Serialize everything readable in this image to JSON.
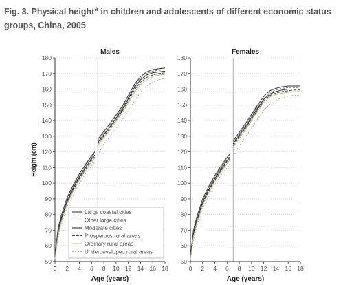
{
  "figure": {
    "title_part1": "Fig. 3. Physical height",
    "title_sup": "a",
    "title_part2": " in children and adolescents of different economic status groups, China, 2005"
  },
  "colors": {
    "text": "#555555",
    "axis": "#333333",
    "gridline": "#cccccc",
    "divider": "#999999"
  },
  "chart_data": [
    {
      "type": "line",
      "title": "Males",
      "xlabel": "Age (years)",
      "ylabel": "Height (cm)",
      "xlim": [
        0,
        18
      ],
      "ylim": [
        50,
        180
      ],
      "xticks": [
        0,
        2,
        4,
        6,
        8,
        10,
        12,
        14,
        16,
        18
      ],
      "yticks": [
        50,
        60,
        70,
        80,
        90,
        100,
        110,
        120,
        130,
        140,
        150,
        160,
        170,
        180
      ],
      "grid": "horizontal dotted",
      "age_divider": 7,
      "legend_position": "bottom-right",
      "series": [
        {
          "name": "Large coastal cities",
          "color": "#333333",
          "dash": "",
          "segments": [
            {
              "x": [
                0,
                0.5,
                1,
                2,
                3,
                4,
                5,
                6,
                6.5
              ],
              "y": [
                54,
                71,
                79,
                91,
                99,
                106,
                112,
                117.5,
                120
              ]
            },
            {
              "x": [
                7,
                8,
                9,
                10,
                11,
                12,
                13,
                14,
                15,
                16,
                17,
                18
              ],
              "y": [
                128,
                133,
                138,
                143.5,
                149,
                156,
                163,
                168,
                171,
                172.5,
                173,
                173.5
              ]
            }
          ]
        },
        {
          "name": "Other large cities",
          "color": "#777777",
          "dash": "3,2",
          "segments": [
            {
              "x": [
                0,
                0.5,
                1,
                2,
                3,
                4,
                5,
                6,
                6.5
              ],
              "y": [
                53.5,
                70,
                78,
                90,
                98,
                105,
                111,
                116.5,
                119
              ]
            },
            {
              "x": [
                7,
                8,
                9,
                10,
                11,
                12,
                13,
                14,
                15,
                16,
                17,
                18
              ],
              "y": [
                127,
                132,
                137,
                142.5,
                148,
                155,
                162,
                167,
                170,
                171.5,
                172,
                172.5
              ]
            }
          ]
        },
        {
          "name": "Moderate cities",
          "color": "#222222",
          "dash": "",
          "segments": [
            {
              "x": [
                0,
                0.5,
                1,
                2,
                3,
                4,
                5,
                6,
                6.5
              ],
              "y": [
                53,
                69,
                77,
                89,
                97,
                104,
                110,
                115.5,
                118
              ]
            },
            {
              "x": [
                7,
                8,
                9,
                10,
                11,
                12,
                13,
                14,
                15,
                16,
                17,
                18
              ],
              "y": [
                126,
                131,
                136,
                141.5,
                147,
                154,
                161,
                166,
                169,
                170.5,
                171,
                171.5
              ]
            }
          ]
        },
        {
          "name": "Prosperous rural areas",
          "color": "#444444",
          "dash": "4,2",
          "segments": [
            {
              "x": [
                0,
                0.5,
                1,
                2,
                3,
                4,
                5,
                6,
                6.5
              ],
              "y": [
                52.5,
                68,
                76,
                88,
                96,
                103,
                109,
                114.5,
                117
              ]
            },
            {
              "x": [
                7,
                8,
                9,
                10,
                11,
                12,
                13,
                14,
                15,
                16,
                17,
                18
              ],
              "y": [
                125,
                130,
                135,
                140.5,
                146,
                152.5,
                159.5,
                164.5,
                167.5,
                169,
                170,
                170.5
              ]
            }
          ]
        },
        {
          "name": "Ordinary rural areas",
          "color": "#b8b87a",
          "dash": "",
          "segments": [
            {
              "x": [
                0,
                0.5,
                1,
                2,
                3,
                4,
                5,
                6,
                6.5
              ],
              "y": [
                52,
                67,
                75,
                87,
                95,
                102,
                108,
                113.5,
                116
              ]
            },
            {
              "x": [
                7,
                8,
                9,
                10,
                11,
                12,
                13,
                14,
                15,
                16,
                17,
                18
              ],
              "y": [
                124,
                129,
                134,
                139.5,
                145,
                151,
                158,
                163,
                166,
                168,
                169,
                169.5
              ]
            }
          ]
        },
        {
          "name": "Underdeveloped rural areas",
          "color": "#b0b0b0",
          "dash": "2,2",
          "segments": [
            {
              "x": [
                0,
                0.5,
                1,
                2,
                3,
                4,
                5,
                6,
                6.5
              ],
              "y": [
                51.5,
                65,
                73,
                85,
                93,
                100,
                106,
                111,
                113.5
              ]
            },
            {
              "x": [
                7,
                8,
                9,
                10,
                11,
                12,
                13,
                14,
                15,
                16,
                17,
                18
              ],
              "y": [
                118,
                125,
                130,
                135,
                140.5,
                146,
                152.5,
                158,
                162,
                164.5,
                166,
                167
              ]
            }
          ]
        }
      ]
    },
    {
      "type": "line",
      "title": "Females",
      "xlabel": "Age (years)",
      "ylabel": "",
      "xlim": [
        0,
        18
      ],
      "ylim": [
        50,
        180
      ],
      "xticks": [
        0,
        2,
        4,
        6,
        8,
        10,
        12,
        14,
        16,
        18
      ],
      "yticks": [
        50,
        60,
        70,
        80,
        90,
        100,
        110,
        120,
        130,
        140,
        150,
        160,
        170,
        180
      ],
      "grid": "horizontal dotted",
      "age_divider": 7,
      "series": [
        {
          "name": "Large coastal cities",
          "color": "#333333",
          "dash": "",
          "segments": [
            {
              "x": [
                0,
                0.5,
                1,
                2,
                3,
                4,
                5,
                6,
                6.5
              ],
              "y": [
                53.5,
                70,
                78,
                90,
                98,
                105,
                111,
                116.5,
                119
              ]
            },
            {
              "x": [
                7,
                8,
                9,
                10,
                11,
                12,
                13,
                14,
                15,
                16,
                17,
                18
              ],
              "y": [
                127,
                132.5,
                138,
                144,
                150,
                155.5,
                159,
                160.5,
                161.5,
                162,
                162,
                162
              ]
            }
          ]
        },
        {
          "name": "Other large cities",
          "color": "#777777",
          "dash": "3,2",
          "segments": [
            {
              "x": [
                0,
                0.5,
                1,
                2,
                3,
                4,
                5,
                6,
                6.5
              ],
              "y": [
                53,
                69,
                77,
                89,
                97,
                104,
                110,
                115.5,
                118
              ]
            },
            {
              "x": [
                7,
                8,
                9,
                10,
                11,
                12,
                13,
                14,
                15,
                16,
                17,
                18
              ],
              "y": [
                126,
                131.5,
                137,
                143,
                149,
                154.5,
                158,
                159.5,
                160.5,
                161,
                161,
                161
              ]
            }
          ]
        },
        {
          "name": "Moderate cities",
          "color": "#222222",
          "dash": "",
          "segments": [
            {
              "x": [
                0,
                0.5,
                1,
                2,
                3,
                4,
                5,
                6,
                6.5
              ],
              "y": [
                52.5,
                68,
                76,
                88,
                96,
                103,
                109,
                114.5,
                117
              ]
            },
            {
              "x": [
                7,
                8,
                9,
                10,
                11,
                12,
                13,
                14,
                15,
                16,
                17,
                18
              ],
              "y": [
                125,
                130.5,
                136,
                142,
                148,
                153.5,
                157,
                158.5,
                159.5,
                160,
                160,
                160
              ]
            }
          ]
        },
        {
          "name": "Prosperous rural areas",
          "color": "#444444",
          "dash": "4,2",
          "segments": [
            {
              "x": [
                0,
                0.5,
                1,
                2,
                3,
                4,
                5,
                6,
                6.5
              ],
              "y": [
                52,
                67,
                75,
                87,
                95,
                102,
                108,
                113.5,
                116
              ]
            },
            {
              "x": [
                7,
                8,
                9,
                10,
                11,
                12,
                13,
                14,
                15,
                16,
                17,
                18
              ],
              "y": [
                124,
                129.5,
                135,
                141,
                147,
                152.5,
                156,
                157.5,
                158.5,
                159,
                159.5,
                159.5
              ]
            }
          ]
        },
        {
          "name": "Ordinary rural areas",
          "color": "#b8b87a",
          "dash": "",
          "segments": [
            {
              "x": [
                0,
                0.5,
                1,
                2,
                3,
                4,
                5,
                6,
                6.5
              ],
              "y": [
                51.5,
                66,
                74,
                86,
                94,
                101,
                107,
                112.5,
                115
              ]
            },
            {
              "x": [
                7,
                8,
                9,
                10,
                11,
                12,
                13,
                14,
                15,
                16,
                17,
                18
              ],
              "y": [
                123,
                128.5,
                134,
                140,
                146,
                151.5,
                155,
                156.5,
                157.5,
                158,
                158.5,
                158.5
              ]
            }
          ]
        },
        {
          "name": "Underdeveloped rural areas",
          "color": "#b0b0b0",
          "dash": "2,2",
          "segments": [
            {
              "x": [
                0,
                0.5,
                1,
                2,
                3,
                4,
                5,
                6,
                6.5
              ],
              "y": [
                51,
                64,
                72,
                84,
                92,
                99,
                105,
                110,
                112.5
              ]
            },
            {
              "x": [
                7,
                8,
                9,
                10,
                11,
                12,
                13,
                14,
                15,
                16,
                17,
                18
              ],
              "y": [
                117,
                124,
                129.5,
                135,
                141,
                146.5,
                150.5,
                153,
                154.5,
                155.5,
                156,
                156
              ]
            }
          ]
        }
      ]
    }
  ]
}
